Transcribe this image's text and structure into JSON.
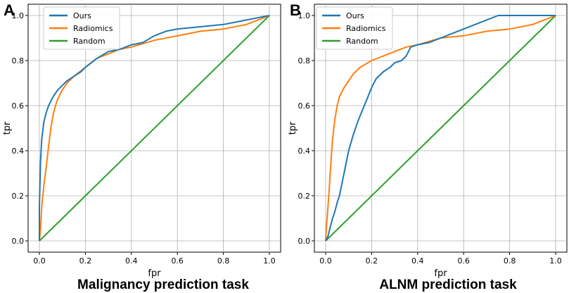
{
  "panels": [
    {
      "letter": "A",
      "caption": "Malignancy prediction task",
      "chart_data": {
        "type": "line",
        "xlabel": "fpr",
        "ylabel": "tpr",
        "xlim": [
          0.0,
          1.0
        ],
        "ylim": [
          0.0,
          1.0
        ],
        "xticks": [
          "0.0",
          "0.2",
          "0.4",
          "0.6",
          "0.8",
          "1.0"
        ],
        "yticks": [
          "0.0",
          "0.2",
          "0.4",
          "0.6",
          "0.8",
          "1.0"
        ],
        "grid": true,
        "legend_position": "top-left",
        "series": [
          {
            "name": "Ours",
            "color": "#1f77b4",
            "x": [
              0.0,
              0.0,
              0.005,
              0.01,
              0.02,
              0.03,
              0.04,
              0.05,
              0.06,
              0.08,
              0.1,
              0.12,
              0.15,
              0.18,
              0.2,
              0.25,
              0.3,
              0.35,
              0.4,
              0.45,
              0.5,
              0.55,
              0.6,
              0.7,
              0.8,
              0.9,
              0.95,
              1.0
            ],
            "y": [
              0.0,
              0.15,
              0.35,
              0.45,
              0.53,
              0.57,
              0.6,
              0.62,
              0.64,
              0.67,
              0.69,
              0.71,
              0.73,
              0.75,
              0.77,
              0.81,
              0.84,
              0.85,
              0.87,
              0.88,
              0.91,
              0.93,
              0.94,
              0.95,
              0.96,
              0.98,
              0.99,
              1.0
            ]
          },
          {
            "name": "Radiomics",
            "color": "#ff7f0e",
            "x": [
              0.0,
              0.005,
              0.01,
              0.02,
              0.03,
              0.04,
              0.05,
              0.06,
              0.07,
              0.08,
              0.1,
              0.12,
              0.15,
              0.2,
              0.25,
              0.3,
              0.35,
              0.4,
              0.5,
              0.6,
              0.7,
              0.8,
              0.9,
              0.95,
              1.0
            ],
            "y": [
              0.0,
              0.05,
              0.15,
              0.25,
              0.33,
              0.42,
              0.5,
              0.56,
              0.6,
              0.63,
              0.67,
              0.7,
              0.73,
              0.77,
              0.81,
              0.83,
              0.85,
              0.86,
              0.89,
              0.91,
              0.93,
              0.94,
              0.96,
              0.98,
              1.0
            ]
          },
          {
            "name": "Random",
            "color": "#2ca02c",
            "x": [
              0.0,
              1.0
            ],
            "y": [
              0.0,
              1.0
            ]
          }
        ]
      }
    },
    {
      "letter": "B",
      "caption": "ALNM prediction task",
      "chart_data": {
        "type": "line",
        "xlabel": "fpr",
        "ylabel": "tpr",
        "xlim": [
          0.0,
          1.0
        ],
        "ylim": [
          0.0,
          1.0
        ],
        "xticks": [
          "0.0",
          "0.2",
          "0.4",
          "0.6",
          "0.8",
          "1.0"
        ],
        "yticks": [
          "0.0",
          "0.2",
          "0.4",
          "0.6",
          "0.8",
          "1.0"
        ],
        "grid": true,
        "legend_position": "top-left",
        "series": [
          {
            "name": "Ours",
            "color": "#1f77b4",
            "x": [
              0.0,
              0.01,
              0.02,
              0.03,
              0.04,
              0.05,
              0.06,
              0.07,
              0.08,
              0.09,
              0.1,
              0.12,
              0.14,
              0.16,
              0.18,
              0.2,
              0.22,
              0.25,
              0.28,
              0.3,
              0.33,
              0.35,
              0.37,
              0.4,
              0.45,
              0.5,
              0.55,
              0.6,
              0.65,
              0.7,
              0.75,
              0.8,
              0.9,
              1.0
            ],
            "y": [
              0.0,
              0.02,
              0.06,
              0.1,
              0.13,
              0.17,
              0.2,
              0.25,
              0.3,
              0.35,
              0.4,
              0.47,
              0.53,
              0.58,
              0.63,
              0.68,
              0.72,
              0.75,
              0.77,
              0.79,
              0.8,
              0.82,
              0.86,
              0.87,
              0.88,
              0.9,
              0.92,
              0.94,
              0.96,
              0.98,
              1.0,
              1.0,
              1.0,
              1.0
            ]
          },
          {
            "name": "Radiomics",
            "color": "#ff7f0e",
            "x": [
              0.0,
              0.005,
              0.01,
              0.015,
              0.02,
              0.025,
              0.03,
              0.04,
              0.05,
              0.06,
              0.08,
              0.1,
              0.12,
              0.15,
              0.2,
              0.25,
              0.3,
              0.35,
              0.4,
              0.5,
              0.6,
              0.7,
              0.8,
              0.9,
              0.95,
              1.0
            ],
            "y": [
              0.0,
              0.08,
              0.15,
              0.22,
              0.3,
              0.38,
              0.45,
              0.54,
              0.6,
              0.64,
              0.68,
              0.71,
              0.74,
              0.77,
              0.8,
              0.82,
              0.84,
              0.86,
              0.87,
              0.9,
              0.91,
              0.93,
              0.94,
              0.96,
              0.98,
              1.0
            ]
          },
          {
            "name": "Random",
            "color": "#2ca02c",
            "x": [
              0.0,
              1.0
            ],
            "y": [
              0.0,
              1.0
            ]
          }
        ]
      }
    }
  ]
}
